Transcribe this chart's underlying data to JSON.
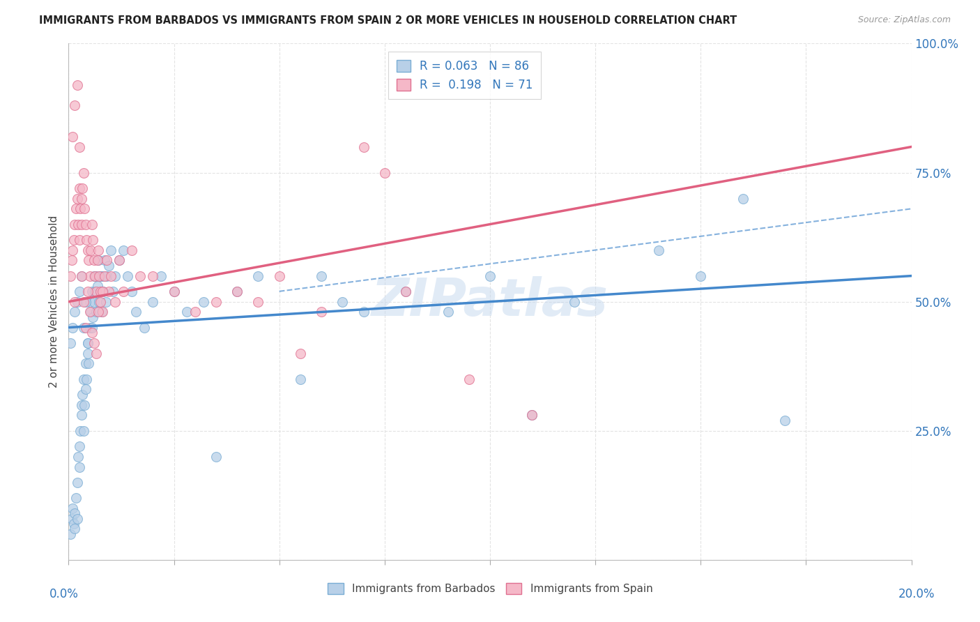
{
  "title": "IMMIGRANTS FROM BARBADOS VS IMMIGRANTS FROM SPAIN 2 OR MORE VEHICLES IN HOUSEHOLD CORRELATION CHART",
  "source": "Source: ZipAtlas.com",
  "ylabel": "2 or more Vehicles in Household",
  "xlim": [
    0.0,
    20.0
  ],
  "ylim": [
    0.0,
    100.0
  ],
  "yticks": [
    0,
    25,
    50,
    75,
    100
  ],
  "ytick_labels": [
    "",
    "25.0%",
    "50.0%",
    "75.0%",
    "100.0%"
  ],
  "xticks": [
    0,
    2.5,
    5.0,
    7.5,
    10.0,
    12.5,
    15.0,
    17.5,
    20.0
  ],
  "barbados_R": 0.063,
  "barbados_N": 86,
  "spain_R": 0.198,
  "spain_N": 71,
  "color_barbados_fill": "#b8d0e8",
  "color_barbados_edge": "#7aadd4",
  "color_spain_fill": "#f5b8c8",
  "color_spain_edge": "#e07090",
  "color_blue_line": "#4488cc",
  "color_pink_line": "#e06080",
  "color_axis_label": "#3377bb",
  "color_grid": "#dddddd",
  "watermark_text": "ZIPatlas",
  "legend_label_barbados": "Immigrants from Barbados",
  "legend_label_spain": "Immigrants from Spain",
  "blue_line_x0": 0.0,
  "blue_line_y0": 45.0,
  "blue_line_x1": 20.0,
  "blue_line_y1": 55.0,
  "pink_line_x0": 0.0,
  "pink_line_y0": 50.0,
  "pink_line_x1": 20.0,
  "pink_line_y1": 80.0,
  "dashed_line_x0": 5.0,
  "dashed_line_y0": 52.0,
  "dashed_line_x1": 20.0,
  "dashed_line_y1": 68.0,
  "barbados_x": [
    0.05,
    0.08,
    0.1,
    0.12,
    0.15,
    0.15,
    0.18,
    0.2,
    0.2,
    0.22,
    0.25,
    0.25,
    0.28,
    0.3,
    0.3,
    0.32,
    0.35,
    0.35,
    0.38,
    0.4,
    0.4,
    0.42,
    0.45,
    0.45,
    0.48,
    0.5,
    0.5,
    0.52,
    0.55,
    0.55,
    0.58,
    0.6,
    0.6,
    0.62,
    0.65,
    0.65,
    0.68,
    0.7,
    0.72,
    0.75,
    0.78,
    0.8,
    0.82,
    0.85,
    0.88,
    0.9,
    0.95,
    1.0,
    1.05,
    1.1,
    1.2,
    1.3,
    1.4,
    1.5,
    1.6,
    1.8,
    2.0,
    2.2,
    2.5,
    2.8,
    3.2,
    3.5,
    4.0,
    4.5,
    5.5,
    6.0,
    6.5,
    7.0,
    8.0,
    9.0,
    10.0,
    11.0,
    12.0,
    14.0,
    15.0,
    16.0,
    17.0,
    0.05,
    0.1,
    0.15,
    0.2,
    0.25,
    0.3,
    0.35,
    0.4,
    0.45
  ],
  "barbados_y": [
    5,
    8,
    10,
    7,
    6,
    9,
    12,
    15,
    8,
    20,
    22,
    18,
    25,
    28,
    30,
    32,
    35,
    25,
    30,
    33,
    38,
    35,
    40,
    42,
    38,
    45,
    50,
    48,
    52,
    45,
    47,
    50,
    55,
    52,
    48,
    55,
    53,
    58,
    50,
    55,
    48,
    55,
    52,
    58,
    50,
    55,
    57,
    60,
    52,
    55,
    58,
    60,
    55,
    52,
    48,
    45,
    50,
    55,
    52,
    48,
    50,
    20,
    52,
    55,
    35,
    55,
    50,
    48,
    52,
    48,
    55,
    28,
    50,
    60,
    55,
    70,
    27,
    42,
    45,
    48,
    50,
    52,
    55,
    45,
    50,
    42
  ],
  "spain_x": [
    0.05,
    0.08,
    0.1,
    0.12,
    0.15,
    0.15,
    0.18,
    0.2,
    0.22,
    0.25,
    0.25,
    0.28,
    0.3,
    0.3,
    0.32,
    0.35,
    0.38,
    0.4,
    0.42,
    0.45,
    0.48,
    0.5,
    0.52,
    0.55,
    0.58,
    0.6,
    0.62,
    0.65,
    0.68,
    0.7,
    0.72,
    0.75,
    0.8,
    0.85,
    0.9,
    0.95,
    1.0,
    1.1,
    1.2,
    1.3,
    1.5,
    1.7,
    2.0,
    2.5,
    3.0,
    3.5,
    4.0,
    4.5,
    5.0,
    5.5,
    6.0,
    7.0,
    7.5,
    8.0,
    9.5,
    11.0,
    0.1,
    0.15,
    0.2,
    0.25,
    0.3,
    0.35,
    0.4,
    0.45,
    0.5,
    0.55,
    0.6,
    0.65,
    0.7,
    0.75,
    0.8
  ],
  "spain_y": [
    55,
    58,
    60,
    62,
    65,
    50,
    68,
    70,
    65,
    72,
    62,
    68,
    65,
    70,
    72,
    75,
    68,
    65,
    62,
    60,
    58,
    55,
    60,
    65,
    62,
    58,
    55,
    52,
    58,
    60,
    55,
    52,
    48,
    55,
    58,
    52,
    55,
    50,
    58,
    52,
    60,
    55,
    55,
    52,
    48,
    50,
    52,
    50,
    55,
    40,
    48,
    80,
    75,
    52,
    35,
    28,
    82,
    88,
    92,
    80,
    55,
    50,
    45,
    52,
    48,
    44,
    42,
    40,
    48,
    50,
    52
  ]
}
